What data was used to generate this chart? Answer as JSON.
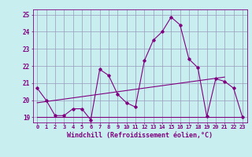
{
  "xlabel": "Windchill (Refroidissement éolien,°C)",
  "bg_color": "#c8eef0",
  "line_color": "#800080",
  "xlim": [
    -0.5,
    23.5
  ],
  "ylim": [
    18.7,
    25.3
  ],
  "xticks": [
    0,
    1,
    2,
    3,
    4,
    5,
    6,
    7,
    8,
    9,
    10,
    11,
    12,
    13,
    14,
    15,
    16,
    17,
    18,
    19,
    20,
    21,
    22,
    23
  ],
  "yticks": [
    19,
    20,
    21,
    22,
    23,
    24,
    25
  ],
  "line1_x": [
    0,
    1,
    2,
    3,
    4,
    5,
    6,
    7,
    8,
    9,
    10,
    11,
    12,
    13,
    14,
    15,
    16,
    17,
    18,
    19,
    20,
    21,
    22,
    23
  ],
  "line1_y": [
    20.7,
    20.0,
    19.1,
    19.1,
    19.5,
    19.5,
    18.85,
    21.8,
    21.45,
    20.35,
    19.85,
    19.6,
    22.3,
    23.5,
    24.0,
    24.85,
    24.4,
    22.4,
    21.9,
    19.05,
    21.25,
    21.1,
    20.7,
    19.0
  ],
  "line2_x": [
    0,
    23
  ],
  "line2_y": [
    19.0,
    19.0
  ],
  "line3_x": [
    0,
    21
  ],
  "line3_y": [
    19.85,
    21.35
  ],
  "grid_color": "#9999bb",
  "tick_fontsize": 5.0,
  "xlabel_fontsize": 6.0
}
